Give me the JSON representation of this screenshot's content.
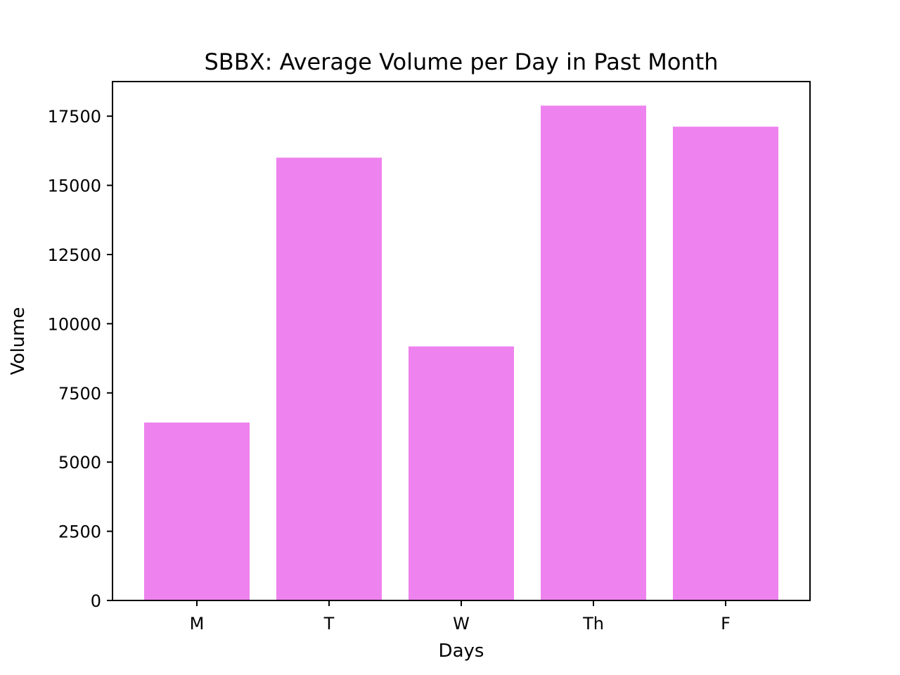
{
  "chart_data": {
    "type": "bar",
    "title": "SBBX: Average Volume per Day in Past Month",
    "xlabel": "Days",
    "ylabel": "Volume",
    "categories": [
      "M",
      "T",
      "W",
      "Th",
      "F"
    ],
    "values": [
      6430,
      16000,
      9180,
      17880,
      17120
    ],
    "ylim": [
      0,
      18750
    ],
    "yticks": [
      0,
      2500,
      5000,
      7500,
      10000,
      12500,
      15000,
      17500
    ],
    "ytick_labels": [
      "0",
      "2500",
      "5000",
      "7500",
      "10000",
      "12500",
      "15000",
      "17500"
    ],
    "bar_color": "#ee82ee",
    "grid": false,
    "legend": "none"
  }
}
